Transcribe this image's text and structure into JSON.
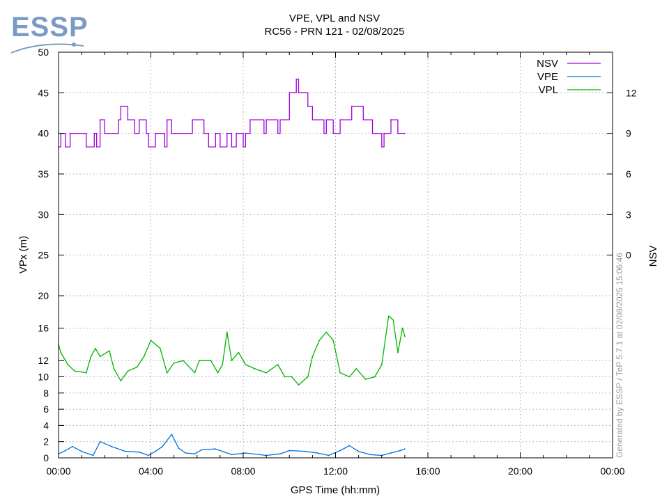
{
  "logo": {
    "text": "ESSP",
    "color": "#7a9cc4"
  },
  "chart_data": {
    "type": "line",
    "title": "VPE, VPL and NSV",
    "subtitle": "RC56 - PRN 121 - 02/08/2025",
    "xlabel": "GPS Time (hh:mm)",
    "ylabel": "VPx (m)",
    "y2label": "NSV",
    "x_unit": "hours",
    "xlim": [
      0,
      24
    ],
    "x_ticks": [
      0,
      4,
      8,
      12,
      16,
      20,
      24
    ],
    "x_tick_labels": [
      "00:00",
      "04:00",
      "08:00",
      "12:00",
      "16:00",
      "20:00",
      "00:00"
    ],
    "y_ticks": [
      0,
      2,
      4,
      6,
      8,
      10,
      12,
      16,
      20,
      25,
      30,
      35,
      40,
      45,
      50
    ],
    "y_scale": "piecewise: 0-20 m on lower part, 20-50 m on upper part",
    "y2_ticks": [
      0,
      3,
      6,
      9,
      12
    ],
    "y2_note": "NSV axis: 0 at 25 m, 3 satellites per 5 m",
    "grid": true,
    "legend_position": "top-right",
    "generated_text": "Generated by ESSP / TeP 5.7.1 at 02/08/2025 15:06:46",
    "series": [
      {
        "name": "NSV",
        "axis": "y2",
        "color": "#a000d8",
        "points": [
          [
            0,
            8
          ],
          [
            0.1,
            9
          ],
          [
            0.3,
            8
          ],
          [
            0.5,
            9
          ],
          [
            1.2,
            8
          ],
          [
            1.55,
            9
          ],
          [
            1.65,
            8
          ],
          [
            1.8,
            10
          ],
          [
            2.0,
            9
          ],
          [
            2.6,
            10
          ],
          [
            2.7,
            11
          ],
          [
            3.0,
            10
          ],
          [
            3.3,
            9
          ],
          [
            3.5,
            10
          ],
          [
            3.8,
            9
          ],
          [
            3.9,
            8
          ],
          [
            4.2,
            9
          ],
          [
            4.6,
            8
          ],
          [
            4.7,
            10
          ],
          [
            4.9,
            9
          ],
          [
            5.8,
            10
          ],
          [
            6.3,
            9
          ],
          [
            6.5,
            8
          ],
          [
            6.8,
            9
          ],
          [
            7.0,
            8
          ],
          [
            7.3,
            9
          ],
          [
            7.5,
            8
          ],
          [
            7.7,
            9
          ],
          [
            8.0,
            8
          ],
          [
            8.1,
            9
          ],
          [
            8.3,
            10
          ],
          [
            8.9,
            9
          ],
          [
            9.0,
            10
          ],
          [
            9.5,
            9
          ],
          [
            9.6,
            10
          ],
          [
            10.0,
            12
          ],
          [
            10.3,
            13
          ],
          [
            10.4,
            12
          ],
          [
            10.8,
            11
          ],
          [
            11.0,
            10
          ],
          [
            11.5,
            9
          ],
          [
            11.6,
            10
          ],
          [
            11.9,
            9
          ],
          [
            12.2,
            10
          ],
          [
            12.7,
            11
          ],
          [
            13.2,
            10
          ],
          [
            13.6,
            9
          ],
          [
            14.0,
            8
          ],
          [
            14.1,
            9
          ],
          [
            14.4,
            10
          ],
          [
            14.7,
            9
          ],
          [
            15.0,
            9
          ]
        ]
      },
      {
        "name": "VPE",
        "axis": "y",
        "color": "#0070dc",
        "points": [
          [
            0,
            0.5
          ],
          [
            0.3,
            0.9
          ],
          [
            0.6,
            1.4
          ],
          [
            1.0,
            0.8
          ],
          [
            1.5,
            0.3
          ],
          [
            1.8,
            2.0
          ],
          [
            2.3,
            1.4
          ],
          [
            2.9,
            0.8
          ],
          [
            3.5,
            0.7
          ],
          [
            3.9,
            0.3
          ],
          [
            4.2,
            0.8
          ],
          [
            4.5,
            1.4
          ],
          [
            4.9,
            2.9
          ],
          [
            5.2,
            1.2
          ],
          [
            5.5,
            0.6
          ],
          [
            5.9,
            0.5
          ],
          [
            6.2,
            1.0
          ],
          [
            6.8,
            1.1
          ],
          [
            7.5,
            0.4
          ],
          [
            8.1,
            0.6
          ],
          [
            9.0,
            0.3
          ],
          [
            9.6,
            0.5
          ],
          [
            10.0,
            0.9
          ],
          [
            10.7,
            0.8
          ],
          [
            11.2,
            0.6
          ],
          [
            11.7,
            0.3
          ],
          [
            12.2,
            0.9
          ],
          [
            12.6,
            1.5
          ],
          [
            13.0,
            0.8
          ],
          [
            13.5,
            0.4
          ],
          [
            14.0,
            0.3
          ],
          [
            14.4,
            0.6
          ],
          [
            14.8,
            0.9
          ],
          [
            15.0,
            1.1
          ]
        ]
      },
      {
        "name": "VPL",
        "axis": "y",
        "color": "#00b400",
        "points": [
          [
            0,
            14.0
          ],
          [
            0.1,
            13.0
          ],
          [
            0.4,
            11.5
          ],
          [
            0.7,
            10.7
          ],
          [
            1.0,
            10.6
          ],
          [
            1.2,
            10.5
          ],
          [
            1.4,
            12.5
          ],
          [
            1.6,
            13.5
          ],
          [
            1.8,
            12.5
          ],
          [
            2.2,
            13.2
          ],
          [
            2.4,
            11.0
          ],
          [
            2.7,
            9.5
          ],
          [
            3.0,
            10.7
          ],
          [
            3.4,
            11.2
          ],
          [
            3.7,
            12.5
          ],
          [
            4.0,
            14.5
          ],
          [
            4.4,
            13.5
          ],
          [
            4.7,
            10.5
          ],
          [
            5.0,
            11.7
          ],
          [
            5.4,
            12.0
          ],
          [
            5.9,
            10.5
          ],
          [
            6.1,
            12.0
          ],
          [
            6.6,
            12.0
          ],
          [
            6.9,
            10.5
          ],
          [
            7.1,
            11.5
          ],
          [
            7.3,
            15.5
          ],
          [
            7.5,
            12.0
          ],
          [
            7.8,
            13.0
          ],
          [
            8.1,
            11.5
          ],
          [
            8.5,
            11.0
          ],
          [
            9.0,
            10.5
          ],
          [
            9.5,
            11.5
          ],
          [
            9.8,
            10.0
          ],
          [
            10.1,
            10.0
          ],
          [
            10.4,
            9.0
          ],
          [
            10.8,
            10.0
          ],
          [
            11.0,
            12.5
          ],
          [
            11.3,
            14.5
          ],
          [
            11.6,
            15.5
          ],
          [
            11.9,
            14.5
          ],
          [
            12.2,
            10.5
          ],
          [
            12.6,
            10.0
          ],
          [
            12.9,
            11.0
          ],
          [
            13.3,
            9.7
          ],
          [
            13.7,
            10.0
          ],
          [
            14.0,
            11.5
          ],
          [
            14.3,
            17.5
          ],
          [
            14.5,
            17.0
          ],
          [
            14.7,
            13.0
          ],
          [
            14.9,
            16.0
          ],
          [
            15.0,
            15.0
          ]
        ]
      }
    ]
  }
}
